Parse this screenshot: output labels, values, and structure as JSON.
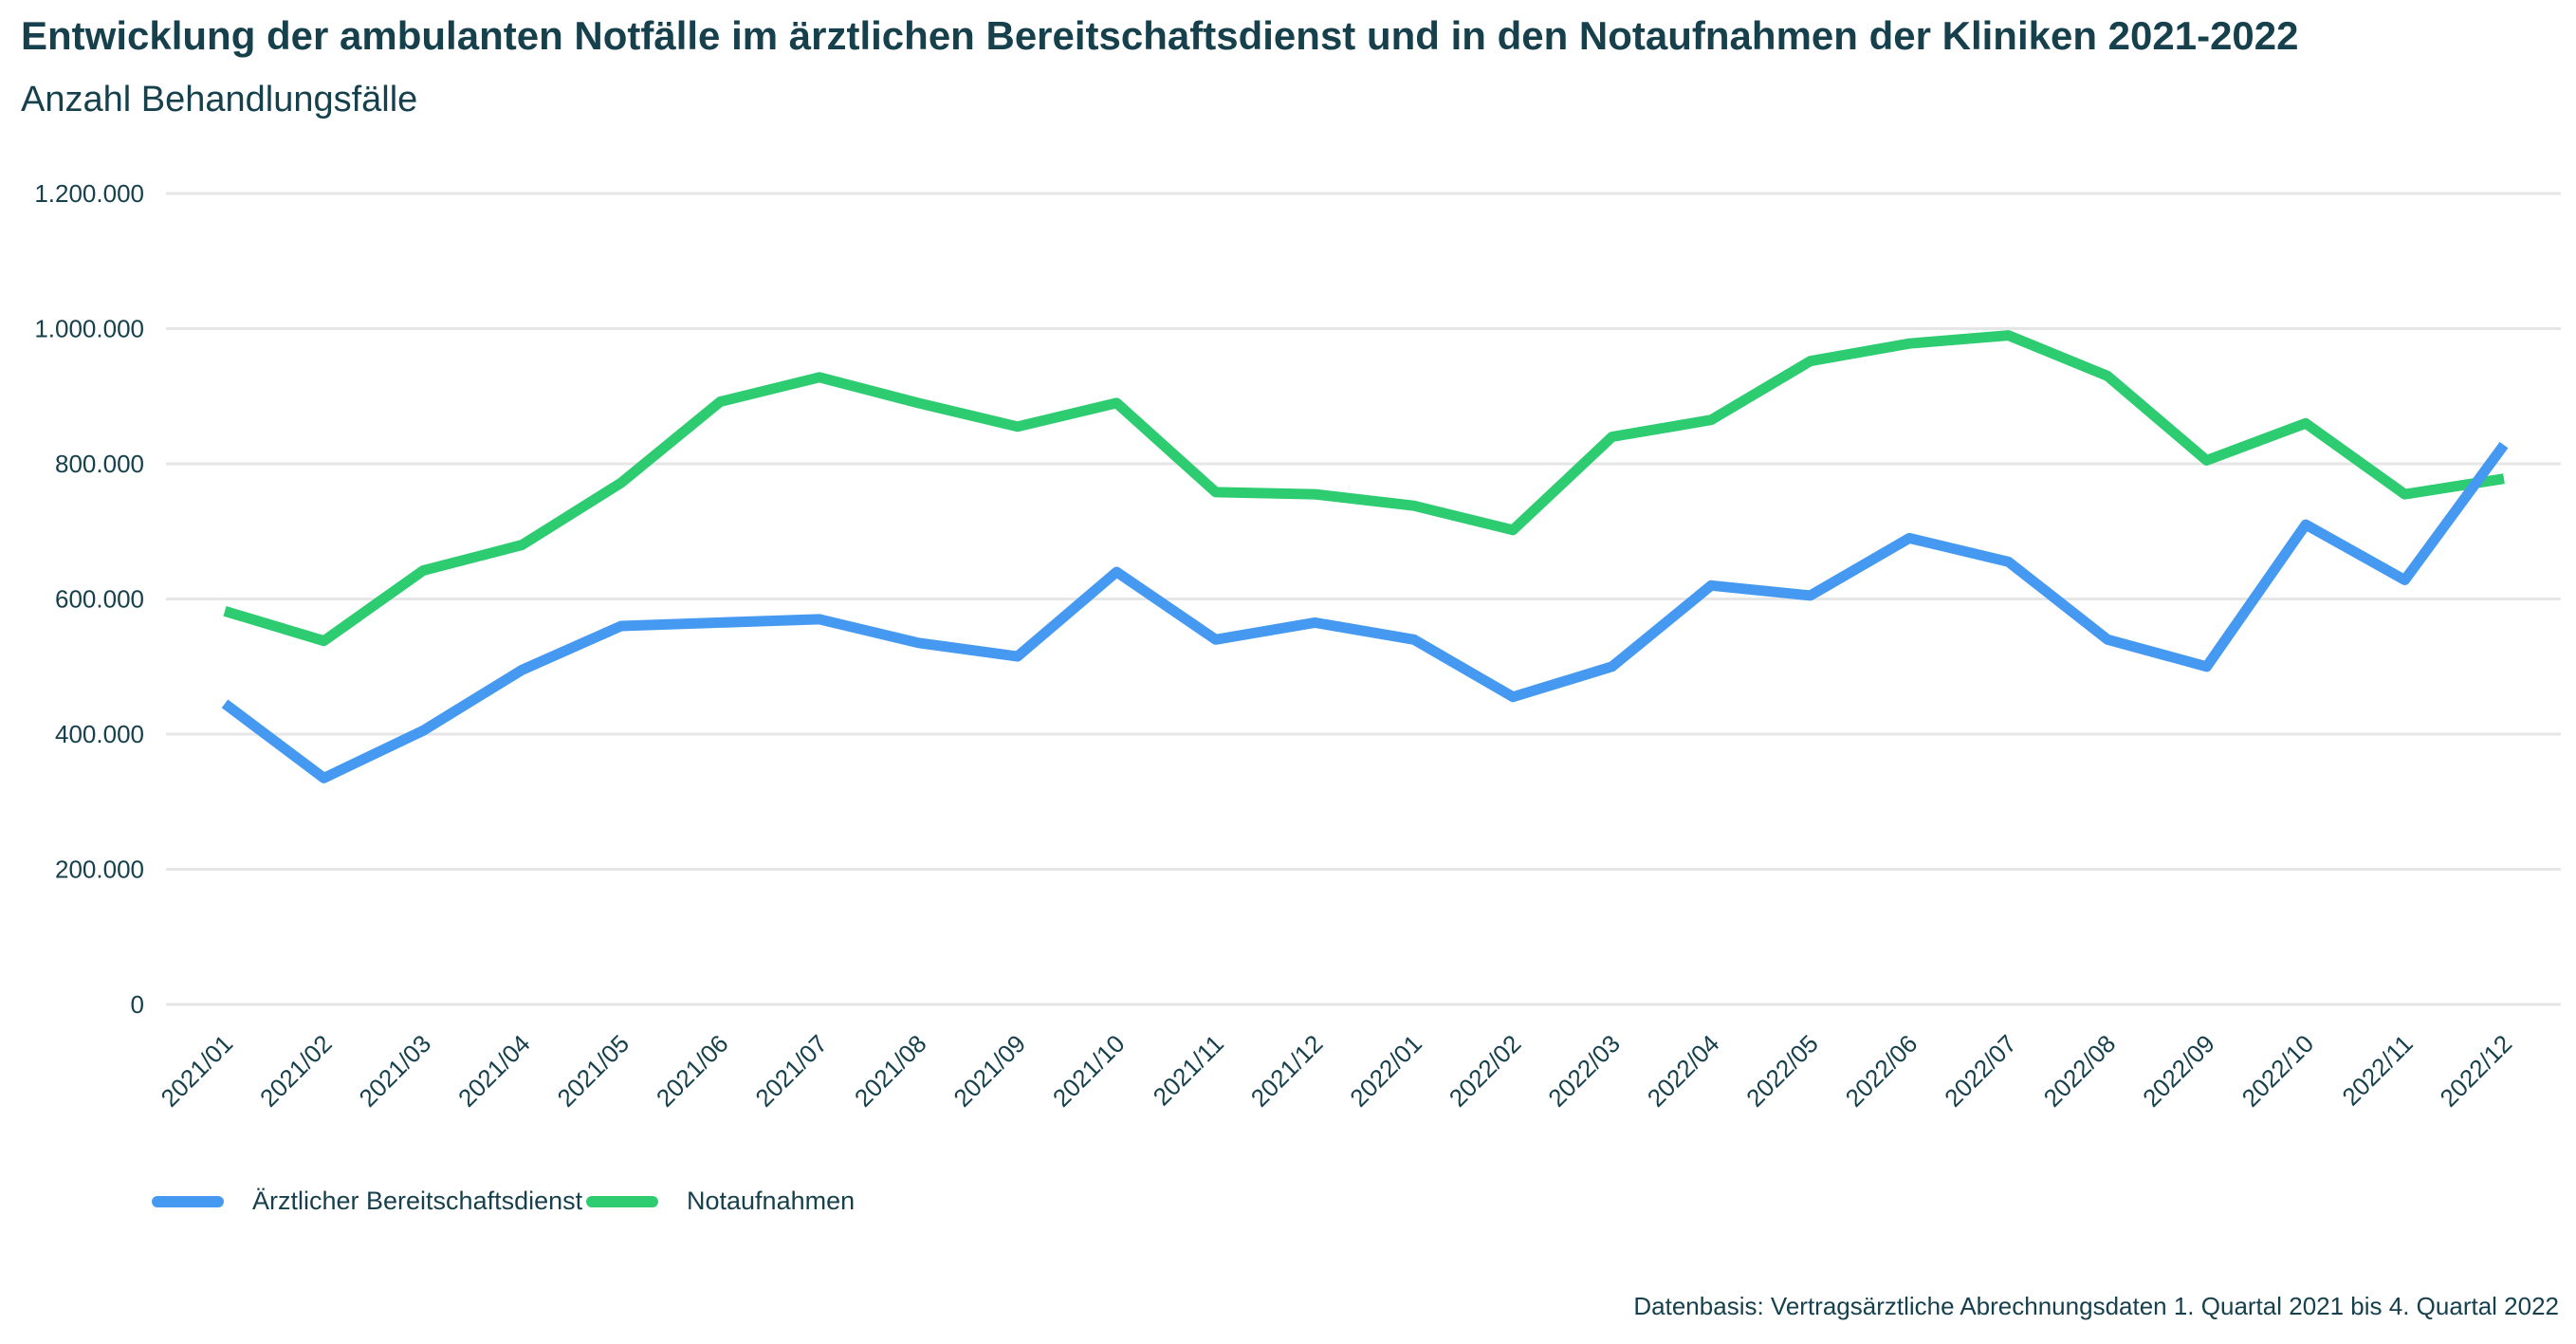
{
  "title": "Entwicklung der ambulanten Notfälle im ärztlichen Bereitschaftsdienst und in den Notaufnahmen der Kliniken 2021-2022",
  "subtitle": "Anzahl Behandlungsfälle",
  "source": "Datenbasis: Vertragsärztliche Abrechnungsdaten 1. Quartal 2021 bis 4. Quartal 2022",
  "chart_data": {
    "type": "line",
    "title": "Entwicklung der ambulanten Notfälle im ärztlichen Bereitschaftsdienst und in den Notaufnahmen der Kliniken 2021-2022",
    "subtitle": "Anzahl Behandlungsfälle",
    "ylim": [
      0,
      1200000
    ],
    "yticks": [
      0,
      200000,
      400000,
      600000,
      800000,
      1000000,
      1200000
    ],
    "ytick_labels": [
      "0",
      "200.000",
      "400.000",
      "600.000",
      "800.000",
      "1.000.000",
      "1.200.000"
    ],
    "grid": true,
    "legend_position": "bottom-left",
    "categories": [
      "2021/01",
      "2021/02",
      "2021/03",
      "2021/04",
      "2021/05",
      "2021/06",
      "2021/07",
      "2021/08",
      "2021/09",
      "2021/10",
      "2021/11",
      "2021/12",
      "2022/01",
      "2022/02",
      "2022/03",
      "2022/04",
      "2022/05",
      "2022/06",
      "2022/07",
      "2022/08",
      "2022/09",
      "2022/10",
      "2022/11",
      "2022/12"
    ],
    "series": [
      {
        "name": "Ärztlicher Bereitschaftsdienst",
        "color": "#4599f0",
        "values": [
          445000,
          335000,
          405000,
          495000,
          560000,
          565000,
          570000,
          535000,
          515000,
          640000,
          540000,
          565000,
          540000,
          455000,
          500000,
          620000,
          605000,
          690000,
          655000,
          540000,
          500000,
          710000,
          628000,
          828000
        ]
      },
      {
        "name": "Notaufnahmen",
        "color": "#2ecc71",
        "values": [
          582000,
          538000,
          642000,
          680000,
          772000,
          892000,
          928000,
          890000,
          855000,
          890000,
          758000,
          755000,
          738000,
          702000,
          840000,
          865000,
          952000,
          978000,
          990000,
          930000,
          805000,
          860000,
          755000,
          778000
        ]
      }
    ]
  }
}
